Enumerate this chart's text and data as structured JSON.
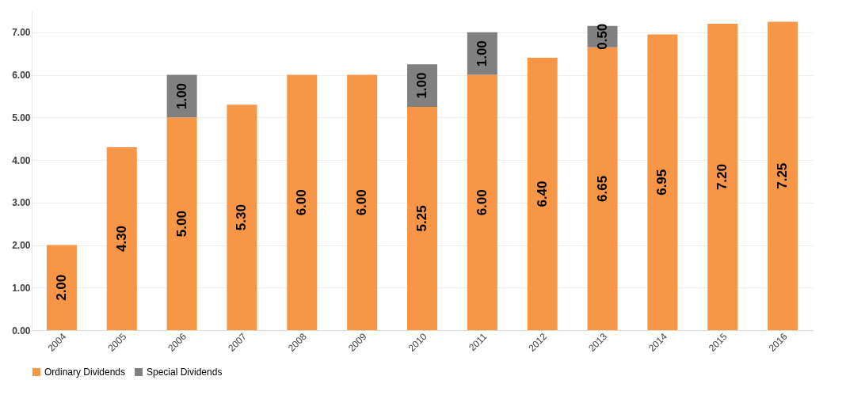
{
  "chart_data": {
    "type": "bar",
    "stacked": true,
    "categories": [
      "2004",
      "2005",
      "2006",
      "2007",
      "2008",
      "2009",
      "2010",
      "2011",
      "2012",
      "2013",
      "2014",
      "2015",
      "2016"
    ],
    "series": [
      {
        "name": "Ordinary Dividends",
        "color": "#f79646",
        "values": [
          2.0,
          4.3,
          5.0,
          5.3,
          6.0,
          6.0,
          5.25,
          6.0,
          6.4,
          6.65,
          6.95,
          7.2,
          7.25
        ],
        "value_labels": [
          "2.00",
          "4.30",
          "5.00",
          "5.30",
          "6.00",
          "6.00",
          "5.25",
          "6.00",
          "6.40",
          "6.65",
          "6.95",
          "7.20",
          "7.25"
        ]
      },
      {
        "name": "Special Dividends",
        "color": "#808080",
        "values": [
          null,
          null,
          1.0,
          null,
          null,
          null,
          1.0,
          1.0,
          null,
          0.5,
          null,
          null,
          null
        ],
        "value_labels": [
          null,
          null,
          "1.00",
          null,
          null,
          null,
          "1.00",
          "1.00",
          null,
          "0.50",
          null,
          null,
          null
        ]
      }
    ],
    "ylim": [
      0,
      7.5
    ],
    "yticks": [
      {
        "value": 0,
        "label": "0.00"
      },
      {
        "value": 1,
        "label": "1.00"
      },
      {
        "value": 2,
        "label": "2.00"
      },
      {
        "value": 3,
        "label": "3.00"
      },
      {
        "value": 4,
        "label": "4.00"
      },
      {
        "value": 5,
        "label": "5.00"
      },
      {
        "value": 6,
        "label": "6.00"
      },
      {
        "value": 7,
        "label": "7.00"
      }
    ],
    "grid": "y",
    "legend": "bottom"
  }
}
